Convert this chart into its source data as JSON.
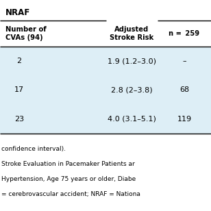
{
  "title": "NRAF",
  "header_row": [
    "Number of\nCVAs (94)",
    "Adjusted\nStroke Risk",
    "n = 259"
  ],
  "rows": [
    [
      "2",
      "1.9 (1.2–3.0)",
      "–"
    ],
    [
      "17",
      "2.8 (2–3.8)",
      "68"
    ],
    [
      "23",
      "4.0 (3.1–5.1)",
      "119"
    ]
  ],
  "table_bg_light": "#ddeef6",
  "table_bg_white": "#ffffff",
  "footer_texts": [
    "confidence interval).",
    "Stroke Evaluation in Pacemaker Patients ar",
    "Hypertension, Age 75 years or older, Diabe",
    "= cerebrovascular accident; NRAF = Nationa"
  ],
  "font_size_title": 8.5,
  "font_size_header": 7.2,
  "font_size_body": 8.0,
  "font_size_footer": 6.5,
  "title_color": "#000000",
  "body_color": "#000000",
  "footer_color": "#000000"
}
